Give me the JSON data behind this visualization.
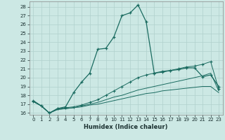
{
  "xlabel": "Humidex (Indice chaleur)",
  "xlim": [
    -0.5,
    23.5
  ],
  "ylim": [
    15.8,
    28.6
  ],
  "yticks": [
    16,
    17,
    18,
    19,
    20,
    21,
    22,
    23,
    24,
    25,
    26,
    27,
    28
  ],
  "xticks": [
    0,
    1,
    2,
    3,
    4,
    5,
    6,
    7,
    8,
    9,
    10,
    11,
    12,
    13,
    14,
    15,
    16,
    17,
    18,
    19,
    20,
    21,
    22,
    23
  ],
  "bg_color": "#cce8e4",
  "grid_color": "#b0d0cc",
  "line_color": "#1a6b60",
  "line1_x": [
    0,
    1,
    2,
    3,
    4,
    5,
    6,
    7,
    8,
    9,
    10,
    11,
    12,
    13,
    14,
    15,
    16,
    17,
    18,
    19,
    20,
    21,
    22,
    23
  ],
  "line1_y": [
    17.4,
    16.8,
    16.0,
    16.5,
    16.7,
    18.3,
    19.5,
    20.5,
    23.2,
    23.3,
    24.6,
    27.0,
    27.3,
    28.2,
    26.3,
    20.5,
    20.7,
    20.8,
    20.9,
    21.1,
    21.1,
    20.1,
    20.3,
    19.0
  ],
  "line2_x": [
    0,
    1,
    2,
    3,
    4,
    5,
    6,
    7,
    8,
    9,
    10,
    11,
    12,
    13,
    14,
    15,
    16,
    17,
    18,
    19,
    20,
    21,
    22,
    23
  ],
  "line2_y": [
    17.3,
    16.8,
    16.0,
    16.5,
    16.6,
    16.7,
    16.9,
    17.2,
    17.5,
    18.0,
    18.5,
    19.0,
    19.5,
    20.0,
    20.3,
    20.5,
    20.6,
    20.8,
    21.0,
    21.2,
    21.3,
    21.5,
    21.8,
    18.7
  ],
  "line3_x": [
    0,
    1,
    2,
    3,
    4,
    5,
    6,
    7,
    8,
    9,
    10,
    11,
    12,
    13,
    14,
    15,
    16,
    17,
    18,
    19,
    20,
    21,
    22,
    23
  ],
  "line3_y": [
    17.3,
    16.8,
    16.0,
    16.4,
    16.5,
    16.6,
    16.8,
    17.0,
    17.2,
    17.5,
    17.8,
    18.0,
    18.3,
    18.6,
    18.8,
    19.0,
    19.2,
    19.4,
    19.6,
    19.8,
    20.0,
    20.2,
    20.5,
    18.5
  ],
  "line4_x": [
    0,
    1,
    2,
    3,
    4,
    5,
    6,
    7,
    8,
    9,
    10,
    11,
    12,
    13,
    14,
    15,
    16,
    17,
    18,
    19,
    20,
    21,
    22,
    23
  ],
  "line4_y": [
    17.3,
    16.8,
    16.0,
    16.4,
    16.5,
    16.6,
    16.7,
    16.9,
    17.0,
    17.2,
    17.4,
    17.6,
    17.8,
    18.0,
    18.2,
    18.3,
    18.5,
    18.6,
    18.7,
    18.8,
    18.9,
    19.0,
    19.0,
    18.3
  ]
}
